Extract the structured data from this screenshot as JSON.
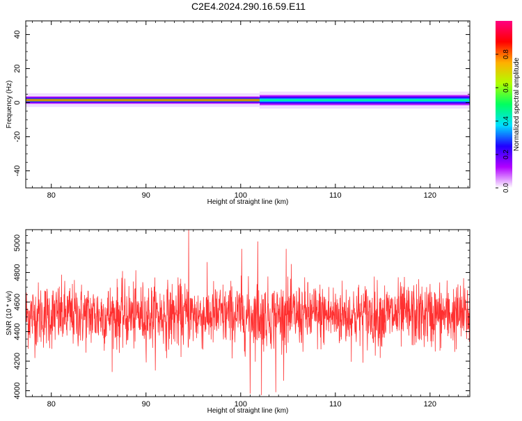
{
  "figure_title": "C2E4.2024.290.16.59.E11",
  "chart_data": [
    {
      "type": "heatmap",
      "title": "",
      "xlabel": "Height of straight line (km)",
      "ylabel": "Frequency (Hz)",
      "xlim": [
        77.3,
        124.2
      ],
      "ylim": [
        -50,
        48
      ],
      "xticks": [
        80,
        90,
        100,
        110,
        120
      ],
      "yticks": [
        -40,
        -20,
        0,
        20,
        40
      ],
      "yticklabels": [
        "-40",
        "-20",
        "0",
        "20",
        "40"
      ],
      "colorbar": {
        "label": "Normalized spectral amplitude",
        "range": [
          0,
          1
        ],
        "ticks": [
          "0.0",
          "0.2",
          "0.4",
          "0.6",
          "0.8"
        ],
        "tickvalues": [
          0,
          0.2,
          0.4,
          0.6,
          0.8
        ],
        "colors": [
          "#ffffff",
          "#b000ff",
          "#2000ff",
          "#00e0ff",
          "#00ff60",
          "#b0ff00",
          "#ffb000",
          "#ff0000",
          "#ff0080"
        ]
      },
      "band": {
        "center_hz": 1.5,
        "segments": [
          {
            "x": [
              77.3,
              102
            ],
            "halfwidth_hz": 2.5,
            "peak": 0.85
          },
          {
            "x": [
              102,
              124.2
            ],
            "halfwidth_hz": 3.5,
            "peak": 0.5
          }
        ]
      }
    },
    {
      "type": "line",
      "title": "",
      "xlabel": "Height of straight line (km)",
      "ylabel": "SNR (10 * v/v)",
      "xlim": [
        77.3,
        124.2
      ],
      "ylim": [
        3960,
        5090
      ],
      "xticks": [
        80,
        90,
        100,
        110,
        120
      ],
      "yticks": [
        4000,
        4200,
        4400,
        4600,
        4800,
        5000
      ],
      "series": [
        {
          "color": "#ff3030",
          "mean": 4510,
          "std": 110,
          "n_points": 1800,
          "notable_peaks": [
            [
              94.5,
              5090
            ],
            [
              101.8,
              5010
            ],
            [
              100.1,
              4960
            ],
            [
              104.8,
              4960
            ]
          ],
          "notable_troughs": [
            [
              101.0,
              3980
            ],
            [
              102.2,
              3970
            ],
            [
              103.7,
              3990
            ]
          ]
        }
      ]
    }
  ]
}
